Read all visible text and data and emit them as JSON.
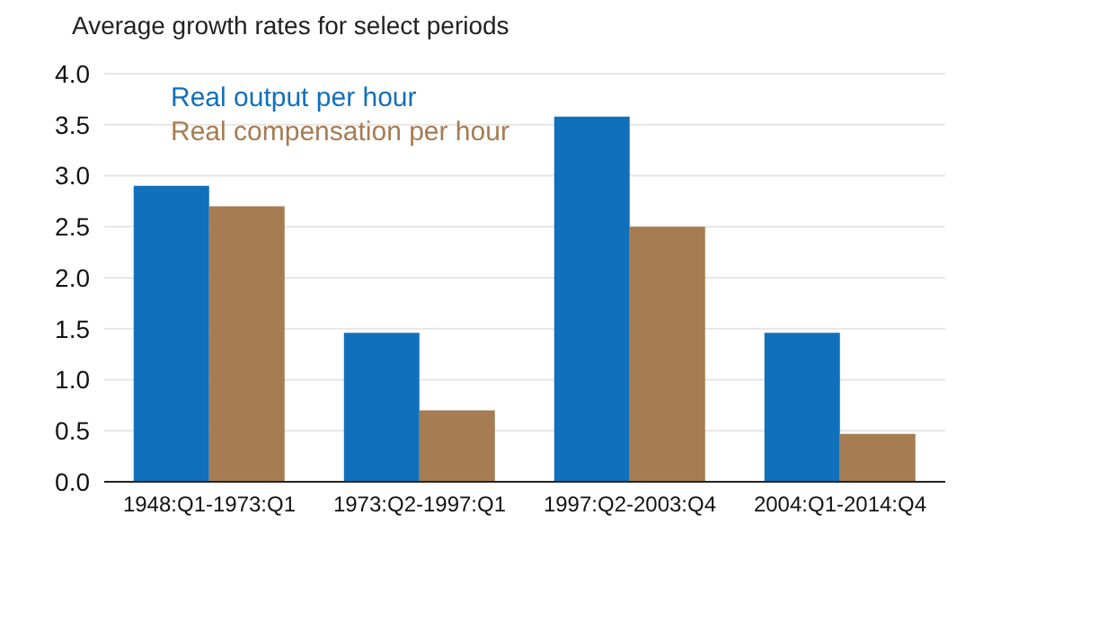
{
  "chart_data": {
    "type": "bar",
    "title": "Average growth rates for select periods",
    "categories": [
      "1948:Q1-1973:Q1",
      "1973:Q2-1997:Q1",
      "1997:Q2-2003:Q4",
      "2004:Q1-2014:Q4"
    ],
    "series": [
      {
        "name": "Real output per hour",
        "color": "#1170bb",
        "values": [
          2.9,
          1.46,
          3.58,
          1.46
        ]
      },
      {
        "name": "Real compensation per hour",
        "color": "#a67c52",
        "values": [
          2.7,
          0.7,
          2.5,
          0.47
        ]
      }
    ],
    "ylim": [
      0,
      4
    ],
    "yticks": [
      {
        "value": 0,
        "label": "0.0"
      },
      {
        "value": 0.5,
        "label": "0.5"
      },
      {
        "value": 1,
        "label": "1.0"
      },
      {
        "value": 1.5,
        "label": "1.5"
      },
      {
        "value": 2,
        "label": "2.0"
      },
      {
        "value": 2.5,
        "label": "2.5"
      },
      {
        "value": 3,
        "label": "3.0"
      },
      {
        "value": 3.5,
        "label": "3.5"
      },
      {
        "value": 4,
        "label": "4.0"
      }
    ],
    "grid": "y",
    "legend": "top left"
  }
}
